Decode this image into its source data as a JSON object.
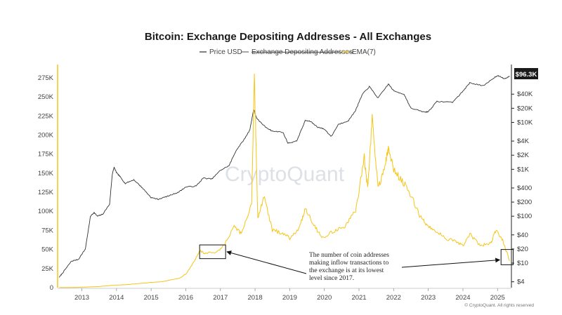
{
  "chart_data": {
    "type": "line",
    "title": "Bitcoin: Exchange Depositing Addresses - All Exchanges",
    "legend": {
      "placement": "top-center",
      "entries": [
        {
          "name": "Price USD",
          "color": "#555555",
          "hidden": false
        },
        {
          "name": "Exchange Depositing Addresses",
          "color": "#888888",
          "hidden": true
        },
        {
          "name": "EMA(7)",
          "color": "#f5c518",
          "hidden": false
        }
      ]
    },
    "x_ticks": [
      "2013",
      "2014",
      "2015",
      "2016",
      "2017",
      "2018",
      "2019",
      "2020",
      "2021",
      "2022",
      "2023",
      "2024",
      "2025"
    ],
    "x_range": [
      2012.3,
      2025.4
    ],
    "y_left": {
      "ticks": [
        0,
        25000,
        50000,
        75000,
        100000,
        125000,
        150000,
        175000,
        200000,
        225000,
        250000,
        275000
      ],
      "tick_labels": [
        "0",
        "25K",
        "50K",
        "75K",
        "100K",
        "125K",
        "150K",
        "175K",
        "200K",
        "225K",
        "250K",
        "275K"
      ],
      "range": [
        0,
        285000
      ]
    },
    "y_right": {
      "scale": "log",
      "ticks": [
        4,
        10,
        20,
        40,
        100,
        200,
        400,
        1000,
        2000,
        4000,
        10000,
        20000,
        40000
      ],
      "tick_labels": [
        "$4",
        "$10",
        "$20",
        "$40",
        "$100",
        "$200",
        "$400",
        "$1K",
        "$2K",
        "$4K",
        "$10K",
        "$20K",
        "$40K"
      ],
      "range": [
        3,
        130000
      ]
    },
    "current_price_badge": "$96.3K",
    "grid": false,
    "series": [
      {
        "name": "Price USD",
        "color": "#333333",
        "axis": "right",
        "points": [
          [
            2012.35,
            5
          ],
          [
            2012.5,
            7
          ],
          [
            2012.7,
            11
          ],
          [
            2012.9,
            12
          ],
          [
            2013.1,
            20
          ],
          [
            2013.25,
            100
          ],
          [
            2013.35,
            120
          ],
          [
            2013.45,
            100
          ],
          [
            2013.6,
            110
          ],
          [
            2013.8,
            180
          ],
          [
            2013.88,
            800
          ],
          [
            2013.93,
            1100
          ],
          [
            2014.0,
            850
          ],
          [
            2014.1,
            700
          ],
          [
            2014.25,
            500
          ],
          [
            2014.5,
            600
          ],
          [
            2014.75,
            400
          ],
          [
            2015.0,
            250
          ],
          [
            2015.2,
            230
          ],
          [
            2015.5,
            270
          ],
          [
            2015.8,
            330
          ],
          [
            2016.0,
            420
          ],
          [
            2016.3,
            440
          ],
          [
            2016.5,
            650
          ],
          [
            2016.75,
            620
          ],
          [
            2017.0,
            950
          ],
          [
            2017.25,
            1200
          ],
          [
            2017.45,
            2500
          ],
          [
            2017.7,
            4500
          ],
          [
            2017.85,
            7000
          ],
          [
            2017.96,
            19000
          ],
          [
            2018.05,
            12000
          ],
          [
            2018.3,
            8000
          ],
          [
            2018.5,
            6500
          ],
          [
            2018.8,
            6200
          ],
          [
            2018.95,
            3600
          ],
          [
            2019.2,
            4000
          ],
          [
            2019.45,
            11000
          ],
          [
            2019.6,
            10500
          ],
          [
            2019.8,
            8000
          ],
          [
            2020.0,
            7200
          ],
          [
            2020.2,
            5000
          ],
          [
            2020.4,
            9000
          ],
          [
            2020.7,
            11000
          ],
          [
            2020.9,
            18000
          ],
          [
            2021.1,
            40000
          ],
          [
            2021.3,
            58000
          ],
          [
            2021.55,
            33000
          ],
          [
            2021.85,
            66000
          ],
          [
            2022.0,
            47000
          ],
          [
            2022.3,
            40000
          ],
          [
            2022.5,
            20000
          ],
          [
            2022.9,
            16500
          ],
          [
            2023.0,
            17000
          ],
          [
            2023.25,
            28000
          ],
          [
            2023.7,
            27000
          ],
          [
            2023.95,
            42000
          ],
          [
            2024.2,
            70000
          ],
          [
            2024.6,
            60000
          ],
          [
            2024.9,
            90000
          ],
          [
            2025.0,
            100000
          ],
          [
            2025.2,
            85000
          ],
          [
            2025.35,
            96300
          ]
        ]
      },
      {
        "name": "EMA(7)",
        "color": "#f5c518",
        "axis": "left",
        "points": [
          [
            2012.35,
            200
          ],
          [
            2013.0,
            500
          ],
          [
            2013.5,
            1500
          ],
          [
            2013.9,
            3000
          ],
          [
            2014.3,
            4000
          ],
          [
            2014.8,
            6000
          ],
          [
            2015.3,
            8000
          ],
          [
            2015.8,
            12000
          ],
          [
            2016.0,
            18000
          ],
          [
            2016.25,
            35000
          ],
          [
            2016.4,
            48000
          ],
          [
            2016.55,
            45000
          ],
          [
            2016.9,
            46000
          ],
          [
            2017.1,
            55000
          ],
          [
            2017.4,
            80000
          ],
          [
            2017.6,
            70000
          ],
          [
            2017.9,
            110000
          ],
          [
            2017.98,
            275000
          ],
          [
            2018.08,
            90000
          ],
          [
            2018.25,
            120000
          ],
          [
            2018.5,
            75000
          ],
          [
            2018.8,
            72000
          ],
          [
            2019.0,
            65000
          ],
          [
            2019.3,
            80000
          ],
          [
            2019.45,
            105000
          ],
          [
            2019.7,
            82000
          ],
          [
            2019.95,
            65000
          ],
          [
            2020.3,
            75000
          ],
          [
            2020.6,
            80000
          ],
          [
            2020.9,
            100000
          ],
          [
            2021.15,
            170000
          ],
          [
            2021.25,
            130000
          ],
          [
            2021.38,
            222000
          ],
          [
            2021.55,
            130000
          ],
          [
            2021.75,
            160000
          ],
          [
            2021.85,
            182000
          ],
          [
            2022.0,
            155000
          ],
          [
            2022.25,
            140000
          ],
          [
            2022.5,
            120000
          ],
          [
            2022.75,
            95000
          ],
          [
            2022.95,
            82000
          ],
          [
            2023.2,
            75000
          ],
          [
            2023.5,
            65000
          ],
          [
            2023.8,
            60000
          ],
          [
            2024.0,
            55000
          ],
          [
            2024.2,
            70000
          ],
          [
            2024.5,
            55000
          ],
          [
            2024.8,
            58000
          ],
          [
            2024.95,
            75000
          ],
          [
            2025.15,
            62000
          ],
          [
            2025.35,
            35000
          ]
        ]
      }
    ],
    "annotation": {
      "lines": [
        "The number of coin addresses",
        "making inflow transactions to",
        "the exchange is at its lowest",
        "level since 2017."
      ],
      "targets": [
        {
          "x_range": [
            2016.4,
            2017.15
          ],
          "y_range": [
            38000,
            56000
          ]
        },
        {
          "x_range": [
            2025.1,
            2025.45
          ],
          "y_range": [
            30000,
            50000
          ]
        }
      ]
    },
    "watermark": "CryptoQuant",
    "copyright": "© CryptoQuant. All rights reserved"
  }
}
